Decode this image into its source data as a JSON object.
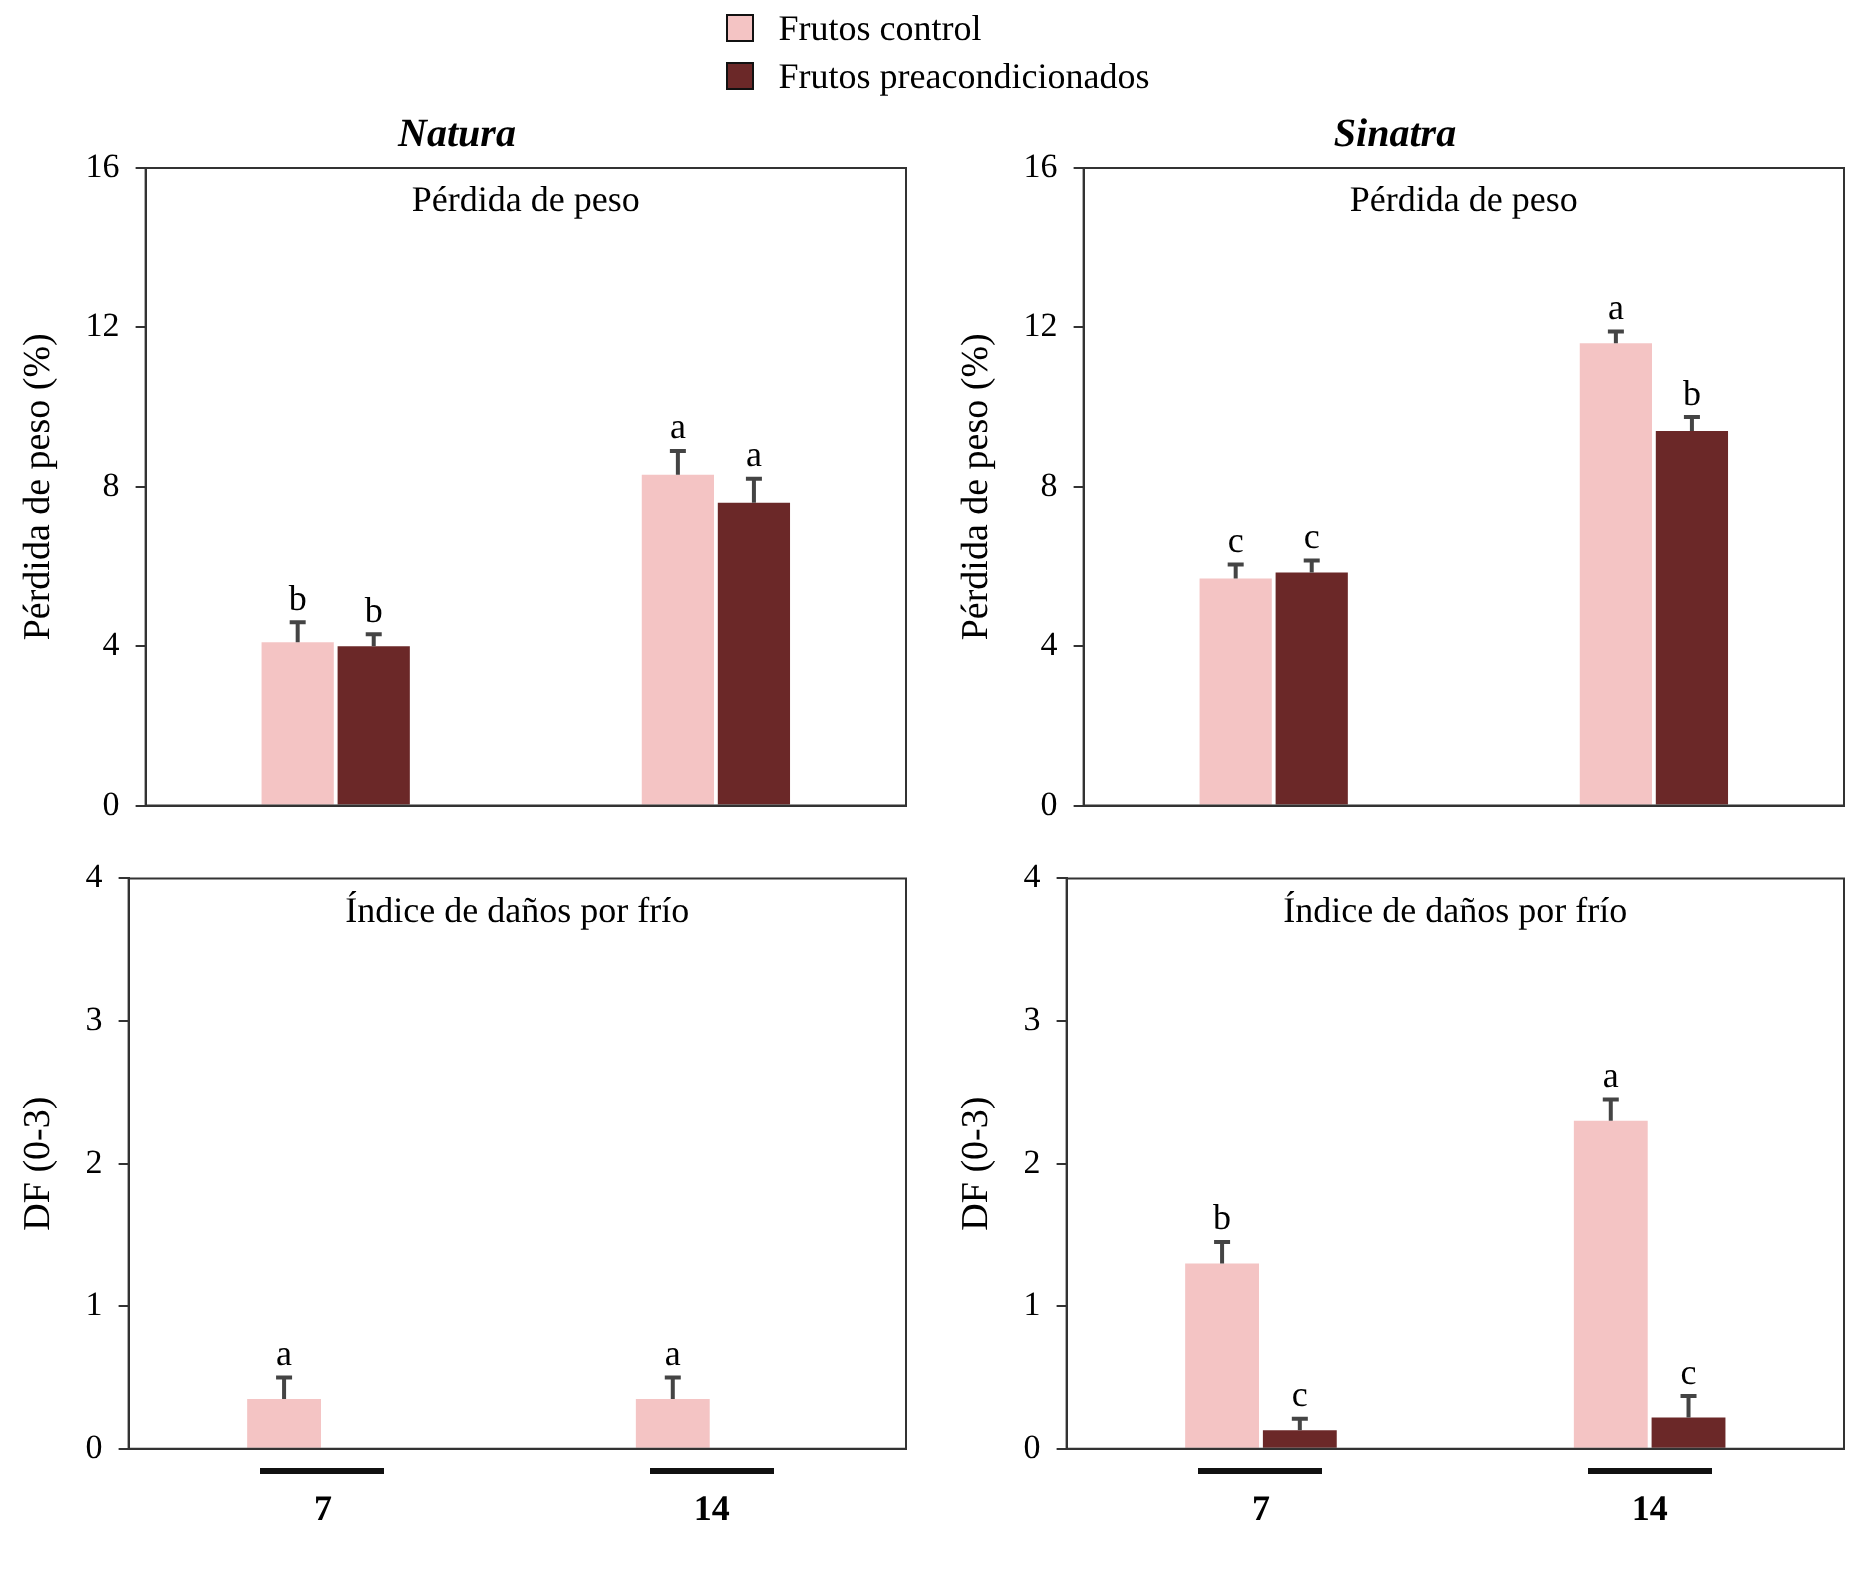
{
  "chart_data": [
    {
      "type": "bar",
      "title": "Natura",
      "subtitle": "Pérdida de peso",
      "ylabel": "Pérdida de peso (%)",
      "categories": [
        "7",
        "14"
      ],
      "ylim": [
        0,
        16
      ],
      "yticks": [
        0,
        4,
        8,
        12,
        16
      ],
      "tick_labels": "y",
      "legend": "top",
      "series": [
        {
          "name": "Frutos control",
          "color": "#f4c4c4",
          "values": [
            4.1,
            8.3
          ],
          "errors": [
            0.5,
            0.6
          ],
          "value_labels": [
            "b",
            "a"
          ]
        },
        {
          "name": "Frutos preacondicionados",
          "color": "#6b2828",
          "values": [
            4.0,
            7.6
          ],
          "errors": [
            0.3,
            0.6
          ],
          "value_labels": [
            "b",
            "a"
          ]
        }
      ]
    },
    {
      "type": "bar",
      "title": "Sinatra",
      "subtitle": "Pérdida de peso",
      "ylabel": "Pérdida de peso (%)",
      "categories": [
        "7",
        "14"
      ],
      "ylim": [
        0,
        16
      ],
      "yticks": [
        0,
        4,
        8,
        12,
        16
      ],
      "tick_labels": "y",
      "series": [
        {
          "color": "#f4c4c4",
          "values": [
            5.7,
            11.6
          ],
          "errors": [
            0.35,
            0.3
          ],
          "value_labels": [
            "c",
            "a"
          ]
        },
        {
          "color": "#6b2828",
          "values": [
            5.85,
            9.4
          ],
          "errors": [
            0.3,
            0.35
          ],
          "value_labels": [
            "c",
            "b"
          ]
        }
      ]
    },
    {
      "type": "bar",
      "subtitle": "Índice de daños por frío",
      "ylabel": "DF (0-3)",
      "categories": [
        "7",
        "14"
      ],
      "ylim": [
        0,
        4
      ],
      "yticks": [
        0,
        1,
        2,
        3,
        4
      ],
      "series": [
        {
          "color": "#f4c4c4",
          "values": [
            0.35,
            0.35
          ],
          "errors": [
            0.15,
            0.15
          ],
          "value_labels": [
            "a",
            "a"
          ]
        },
        {
          "color": "#6b2828",
          "values": [
            0,
            0
          ],
          "value_labels": [
            null,
            null
          ]
        }
      ]
    },
    {
      "type": "bar",
      "subtitle": "Índice de daños por frío",
      "ylabel": "DF (0-3)",
      "categories": [
        "7",
        "14"
      ],
      "ylim": [
        0,
        4
      ],
      "yticks": [
        0,
        1,
        2,
        3,
        4
      ],
      "series": [
        {
          "color": "#f4c4c4",
          "values": [
            1.3,
            2.3
          ],
          "errors": [
            0.15,
            0.15
          ],
          "value_labels": [
            "b",
            "a"
          ]
        },
        {
          "color": "#6b2828",
          "values": [
            0.13,
            0.22
          ],
          "errors": [
            0.08,
            0.15
          ],
          "value_labels": [
            "c",
            "c"
          ]
        }
      ]
    }
  ]
}
